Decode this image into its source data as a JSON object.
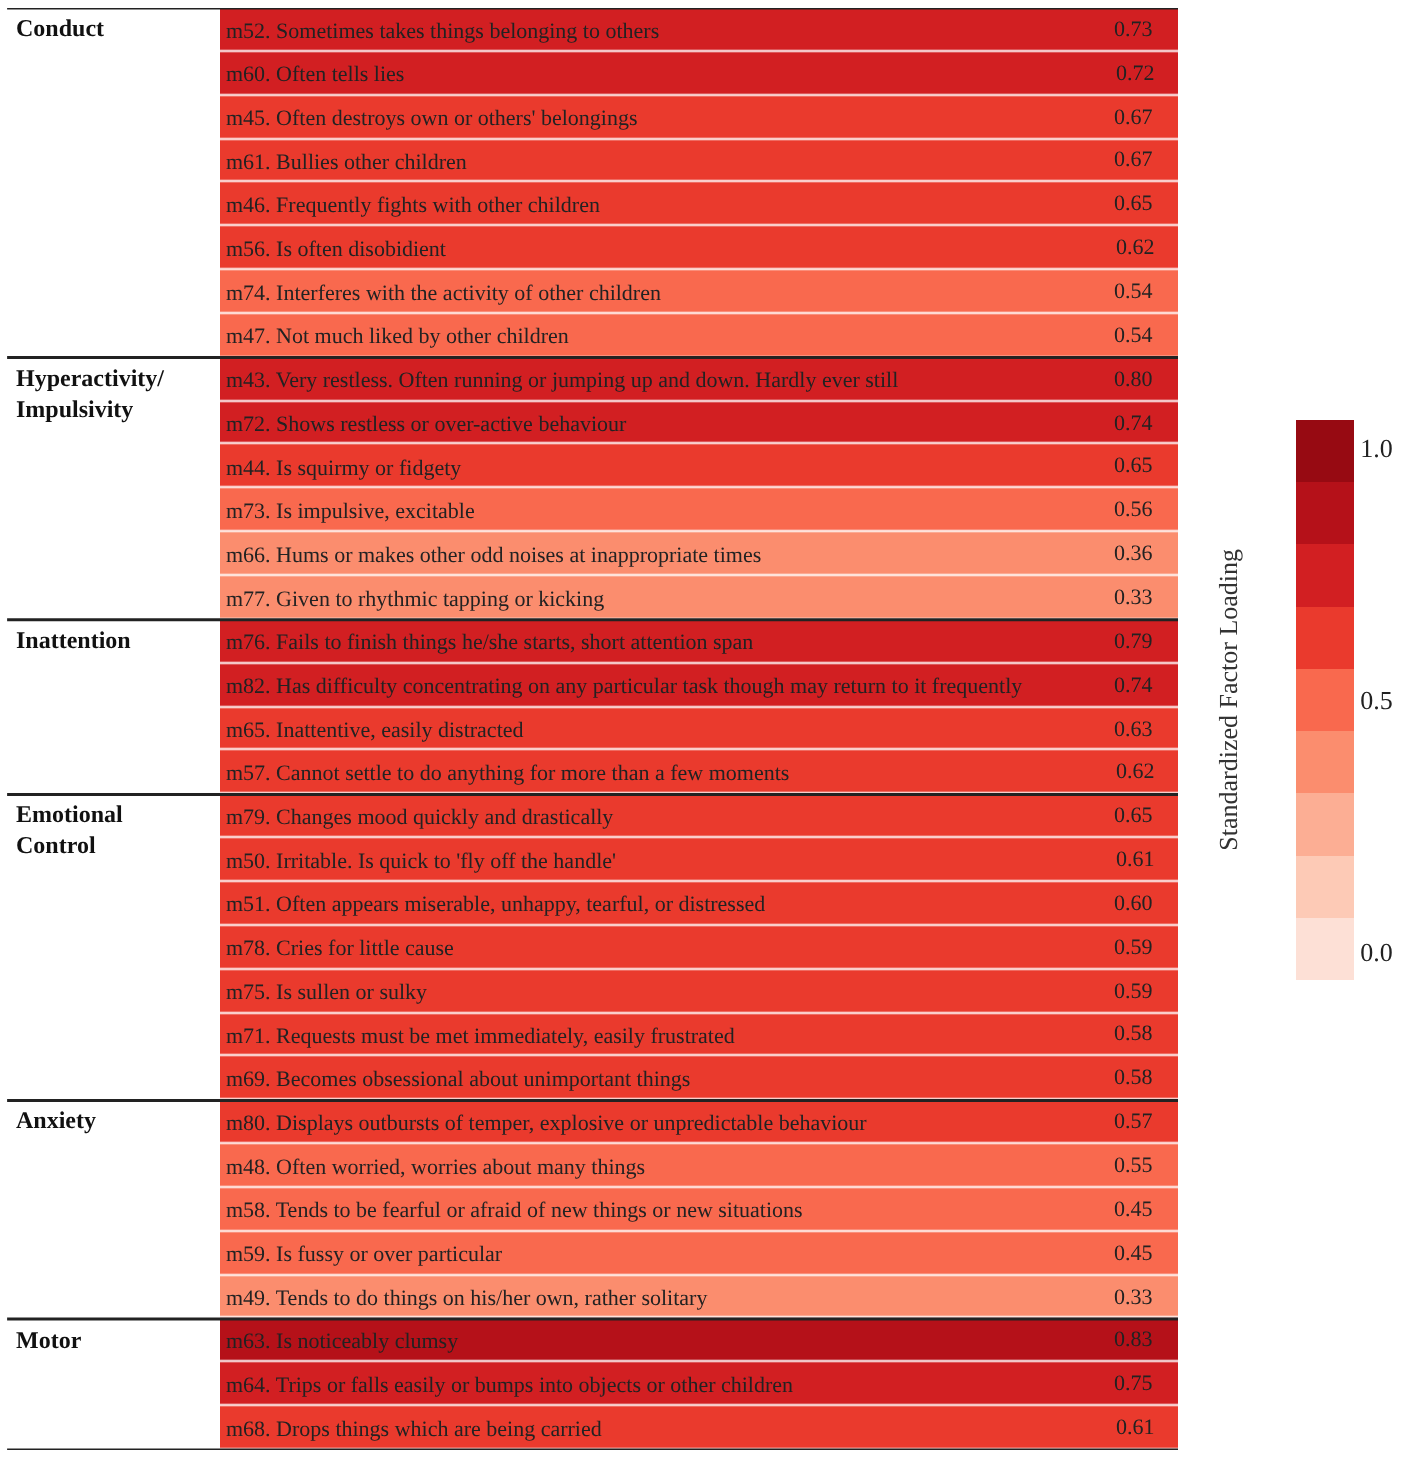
{
  "chart_data": {
    "type": "heatmap",
    "clabel": "Standardized Factor Loading",
    "categories": [
      null
    ],
    "y_categories": [
      "m52. Sometimes takes things belonging to others",
      "m60. Often tells lies",
      "m45. Often destroys own or others' belongings",
      "m61. Bullies other children",
      "m46. Frequently fights with other children",
      "m56. Is often disobidient",
      "m74. Interferes with the activity of other children",
      "m47. Not much liked by other children",
      "m43. Very restless. Often running or jumping up and down. Hardly ever still",
      "m72. Shows restless or over-active behaviour",
      "m44. Is squirmy or fidgety",
      "m73. Is impulsive, excitable",
      "m66. Hums or makes other odd noises at inappropriate times",
      "m77. Given to rhythmic tapping or kicking",
      "m76. Fails to finish things he/she starts, short attention span",
      "m82. Has difficulty concentrating on any particular task though may return to it frequently",
      "m65. Inattentive, easily distracted",
      "m57. Cannot settle to do anything for more than a few moments",
      "m79. Changes mood quickly and drastically",
      "m50. Irritable. Is quick to 'fly off the handle'",
      "m51. Often appears miserable, unhappy, tearful, or distressed",
      "m78. Cries for little cause",
      "m75. Is sullen or sulky",
      "m71. Requests must be met immediately, easily frustrated",
      "m69. Becomes obsessional about unimportant things",
      "m80. Displays outbursts of temper, explosive or unpredictable behaviour",
      "m48. Often worried, worries about many things",
      "m58. Tends to be fearful or afraid of new things or new situations",
      "m59. Is fussy or over particular",
      "m49. Tends to do things on his/her own, rather solitary",
      "m63. Is noticeably clumsy",
      "m64. Trips or falls easily or bumps into objects or other children",
      "m68. Drops things which are being carried"
    ],
    "y2_categories": [
      "Conduct",
      null,
      null,
      null,
      null,
      null,
      null,
      null,
      "Hyperactivity/\nImpulsivity",
      null,
      null,
      null,
      null,
      null,
      "Inattention",
      null,
      null,
      null,
      "Emotional\nControl",
      null,
      null,
      null,
      null,
      null,
      null,
      "Anxiety",
      null,
      null,
      null,
      null,
      "Motor",
      null,
      null
    ],
    "cells": [
      [
        0.73
      ],
      [
        0.72
      ],
      [
        0.67
      ],
      [
        0.67
      ],
      [
        0.65
      ],
      [
        0.62
      ],
      [
        0.54
      ],
      [
        0.54
      ],
      [
        0.8
      ],
      [
        0.74
      ],
      [
        0.65
      ],
      [
        0.56
      ],
      [
        0.36
      ],
      [
        0.33
      ],
      [
        0.79
      ],
      [
        0.74
      ],
      [
        0.63
      ],
      [
        0.62
      ],
      [
        0.65
      ],
      [
        0.61
      ],
      [
        0.6
      ],
      [
        0.59
      ],
      [
        0.59
      ],
      [
        0.58
      ],
      [
        0.58
      ],
      [
        0.57
      ],
      [
        0.55
      ],
      [
        0.45
      ],
      [
        0.45
      ],
      [
        0.33
      ],
      [
        0.83
      ],
      [
        0.75
      ],
      [
        0.61
      ]
    ],
    "cell_labels": [
      [
        "0.73"
      ],
      [
        "0.72"
      ],
      [
        "0.67"
      ],
      [
        "0.67"
      ],
      [
        "0.65"
      ],
      [
        "0.62"
      ],
      [
        "0.54"
      ],
      [
        "0.54"
      ],
      [
        "0.80"
      ],
      [
        "0.74"
      ],
      [
        "0.65"
      ],
      [
        "0.56"
      ],
      [
        "0.36"
      ],
      [
        "0.33"
      ],
      [
        "0.79"
      ],
      [
        "0.74"
      ],
      [
        "0.63"
      ],
      [
        "0.62"
      ],
      [
        "0.65"
      ],
      [
        "0.61"
      ],
      [
        "0.60"
      ],
      [
        "0.59"
      ],
      [
        "0.59"
      ],
      [
        "0.58"
      ],
      [
        "0.58"
      ],
      [
        "0.57"
      ],
      [
        "0.55"
      ],
      [
        "0.45"
      ],
      [
        "0.45"
      ],
      [
        "0.33"
      ],
      [
        "0.83"
      ],
      [
        "0.75"
      ],
      [
        "0.61"
      ]
    ],
    "clim": [
      -0.055,
      1.055
    ],
    "cticks": [
      {
        "value": 0,
        "label": "0.0"
      },
      0.5,
      {
        "value": 1,
        "label": "1.0"
      }
    ]
  }
}
